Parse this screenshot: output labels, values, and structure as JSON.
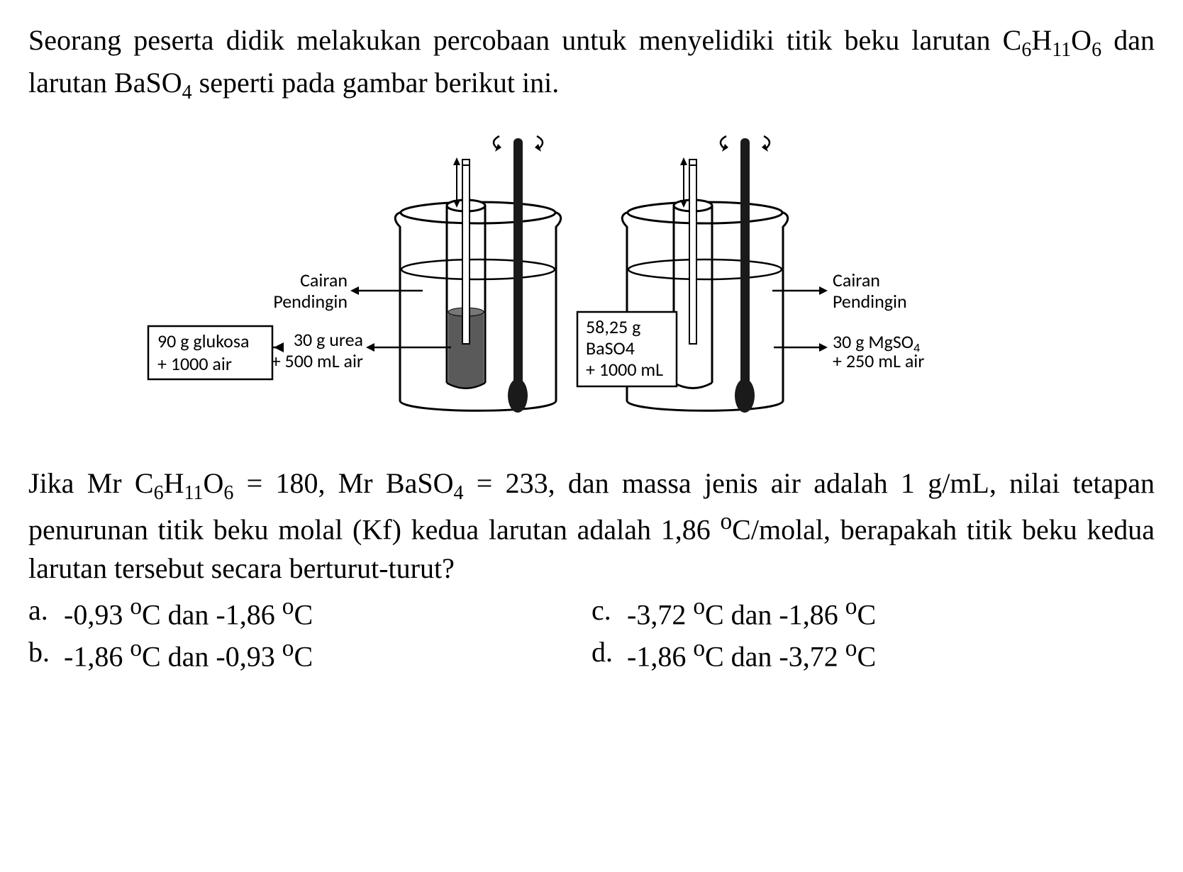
{
  "intro_html": "Seorang peserta didik melakukan percobaan untuk menyelidiki titik beku larutan C<sub>6</sub>H<sub>11</sub>O<sub>6</sub> dan larutan BaSO<sub>4</sub> seperti pada gambar berikut ini.",
  "diagram": {
    "left": {
      "coolant_label_line1": "Cairan",
      "coolant_label_line2": "Pendingin",
      "box_line1": "90 g glukosa",
      "box_line2": "+ 1000 air",
      "inner_line1": "30 g  urea",
      "inner_line2": "+ 500 mL air"
    },
    "right": {
      "coolant_label_line1": "Cairan",
      "coolant_label_line2": "Pendingin",
      "box_line1": "58,25 g",
      "box_line2": "BaSO4",
      "box_line3": "+ 1000 mL",
      "inner_line1_html": "30 g  MgSO<sub>4</sub>",
      "inner_line2": "+ 250 mL air"
    },
    "colors": {
      "stroke": "#000000",
      "fill_dark": "#5a5a5a",
      "fill_white": "#ffffff",
      "text": "#000000"
    },
    "font_family": "Calibri, Arial, sans-serif",
    "label_fontsize": 26
  },
  "followup_html": "Jika Mr C<sub>6</sub>H<sub>11</sub>O<sub>6</sub> = 180, Mr BaSO<sub>4</sub> = 233, dan massa jenis air adalah 1 g/mL, nilai tetapan penurunan titik beku molal (Kf) kedua larutan adalah 1,86 <sup>o</sup>C/molal, berapakah titik beku kedua larutan tersebut secara berturut-turut?",
  "options": {
    "a": "-0,93 <sup>o</sup>C dan -1,86 <sup>o</sup>C",
    "b": "-1,86 <sup>o</sup>C dan -0,93 <sup>o</sup>C",
    "c": "-3,72 <sup>o</sup>C dan -1,86 <sup>o</sup>C",
    "d": "-1,86 <sup>o</sup>C dan -3,72 <sup>o</sup>C"
  }
}
